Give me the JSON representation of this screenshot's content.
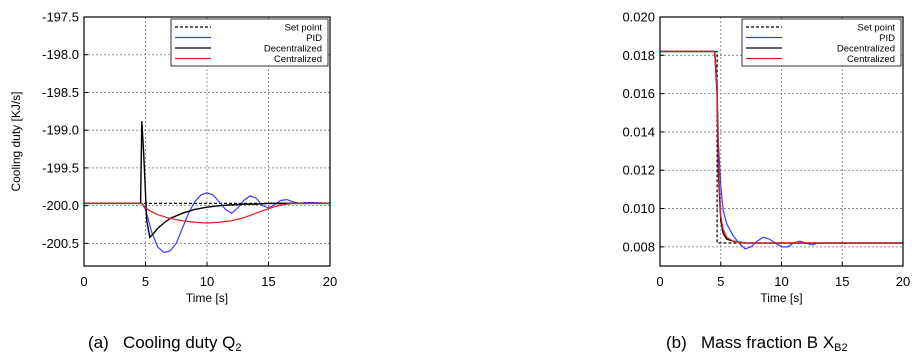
{
  "chart_data": [
    {
      "type": "line",
      "caption": {
        "prefix": "(a)",
        "text": "Cooling duty Q",
        "sub": "2"
      },
      "xlabel": "Time [s]",
      "ylabel": "Cooling duty [KJ/s]",
      "xlim": [
        0,
        20
      ],
      "ylim": [
        -200.8,
        -197.5
      ],
      "xticks": [
        "0",
        "5",
        "10",
        "15",
        "20"
      ],
      "yticks": [
        "-197.5",
        "-198.0",
        "-198.5",
        "-199.0",
        "-199.5",
        "-200.0",
        "-200.5"
      ],
      "grid": true,
      "legend_position": "top-right",
      "series": [
        {
          "name": "Set point",
          "color": "#000000",
          "dash": true,
          "x": [
            0,
            4.7,
            5,
            20
          ],
          "y": [
            -199.97,
            -199.97,
            -199.97,
            -199.97
          ]
        },
        {
          "name": "PID",
          "color": "#3b3bff",
          "dash": false,
          "x": [
            0,
            4.7,
            5,
            5.5,
            6,
            6.5,
            7,
            7.5,
            8,
            8.5,
            9,
            9.5,
            10,
            10.5,
            11,
            11.5,
            12,
            12.5,
            13,
            13.5,
            14,
            14.5,
            15,
            15.5,
            16,
            16.5,
            17,
            17.5,
            18,
            18.5,
            20
          ],
          "y": [
            -199.97,
            -199.97,
            -200.05,
            -200.35,
            -200.55,
            -200.62,
            -200.6,
            -200.5,
            -200.3,
            -200.1,
            -199.95,
            -199.86,
            -199.83,
            -199.86,
            -199.95,
            -200.05,
            -200.1,
            -200.03,
            -199.93,
            -199.87,
            -199.9,
            -200.0,
            -200.03,
            -199.99,
            -199.93,
            -199.92,
            -199.95,
            -199.97,
            -199.96,
            -199.96,
            -199.97
          ]
        },
        {
          "name": "Decentralized",
          "color": "#000000",
          "dash": false,
          "x": [
            0,
            4.6,
            4.7,
            4.85,
            5.1,
            5.35,
            5.6,
            6,
            6.5,
            7,
            8,
            9,
            10,
            11,
            12,
            13,
            14,
            15,
            16,
            17,
            18,
            20
          ],
          "y": [
            -199.97,
            -199.97,
            -198.88,
            -199.3,
            -200.2,
            -200.42,
            -200.38,
            -200.3,
            -200.23,
            -200.17,
            -200.1,
            -200.05,
            -200.02,
            -200.0,
            -199.99,
            -199.98,
            -199.98,
            -199.97,
            -199.97,
            -199.97,
            -199.97,
            -199.97
          ]
        },
        {
          "name": "Centralized",
          "color": "#e02020",
          "dash": false,
          "x": [
            0,
            4.7,
            5,
            5.5,
            6,
            7,
            8,
            9,
            10,
            11,
            12,
            13,
            14,
            15,
            16,
            17,
            18,
            20
          ],
          "y": [
            -199.97,
            -199.97,
            -200.03,
            -200.08,
            -200.12,
            -200.17,
            -200.2,
            -200.22,
            -200.23,
            -200.22,
            -200.2,
            -200.16,
            -200.1,
            -200.04,
            -199.99,
            -199.97,
            -199.97,
            -199.97
          ]
        }
      ]
    },
    {
      "type": "line",
      "caption": {
        "prefix": "(b)",
        "text": "Mass fraction B X",
        "sub": "B2"
      },
      "xlabel": "Time [s]",
      "ylabel": "",
      "xlim": [
        0,
        20
      ],
      "ylim": [
        0.007,
        0.02
      ],
      "xticks": [
        "0",
        "5",
        "10",
        "15",
        "20"
      ],
      "yticks": [
        "0.020",
        "0.018",
        "0.016",
        "0.014",
        "0.012",
        "0.010",
        "0.008"
      ],
      "grid": true,
      "legend_position": "top-right",
      "series": [
        {
          "name": "Set point",
          "color": "#000000",
          "dash": true,
          "x": [
            0,
            4.7,
            4.7,
            20
          ],
          "y": [
            0.0182,
            0.0182,
            0.0082,
            0.0082
          ]
        },
        {
          "name": "PID",
          "color": "#3b3bff",
          "dash": false,
          "x": [
            0,
            4.5,
            4.7,
            4.8,
            5,
            5.2,
            5.5,
            6,
            6.5,
            7,
            7.5,
            8,
            8.5,
            9,
            9.5,
            10,
            10.5,
            11,
            11.5,
            12,
            12.5,
            13,
            13.5,
            14,
            15,
            20
          ],
          "y": [
            0.0182,
            0.0182,
            0.0165,
            0.0135,
            0.0112,
            0.0099,
            0.0092,
            0.0086,
            0.0082,
            0.0079,
            0.008,
            0.0083,
            0.0085,
            0.0084,
            0.0082,
            0.008,
            0.008,
            0.0082,
            0.0083,
            0.0082,
            0.0081,
            0.0082,
            0.0082,
            0.0082,
            0.0082,
            0.0082
          ]
        },
        {
          "name": "Decentralized",
          "color": "#000000",
          "dash": false,
          "x": [
            0,
            4.5,
            4.7,
            4.8,
            5,
            5.2,
            5.5,
            6,
            7,
            8,
            10,
            20
          ],
          "y": [
            0.0182,
            0.0182,
            0.016,
            0.012,
            0.0094,
            0.0087,
            0.0084,
            0.0083,
            0.0082,
            0.0082,
            0.0082,
            0.0082
          ]
        },
        {
          "name": "Centralized",
          "color": "#e02020",
          "dash": false,
          "x": [
            0,
            4.5,
            4.7,
            4.8,
            5,
            5.2,
            5.5,
            6,
            7,
            8,
            10,
            20
          ],
          "y": [
            0.0182,
            0.0182,
            0.0162,
            0.0125,
            0.0096,
            0.0089,
            0.0085,
            0.0083,
            0.0082,
            0.0082,
            0.0082,
            0.0082
          ]
        }
      ]
    }
  ]
}
